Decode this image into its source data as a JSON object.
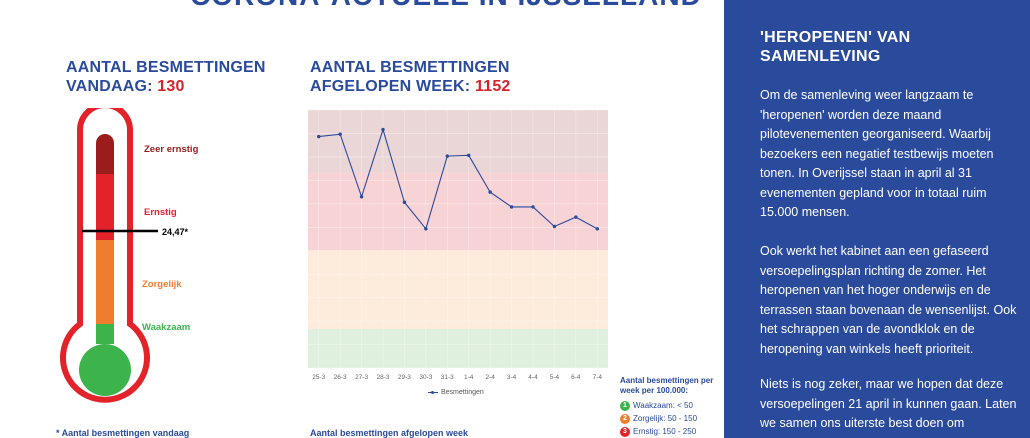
{
  "banner": {
    "title": "CORONA-ACTUELE IN IJSSELLAND"
  },
  "thermometer": {
    "heading_label": "AANTAL BESMETTINGEN",
    "heading_label2": "VANDAAG:",
    "heading_value": "130",
    "levels": [
      {
        "label": "Zeer ernstig",
        "color": "#9b1c1c"
      },
      {
        "label": "Ernstig",
        "color": "#e3232a"
      },
      {
        "label": "Zorgelijk",
        "color": "#f07c2e"
      },
      {
        "label": "Waakzaam",
        "color": "#3cb44b"
      }
    ],
    "marker_value": "24,47*",
    "footnote": "* Aantal besmettingen vandaag"
  },
  "weekly": {
    "heading_label": "AANTAL BESMETTINGEN",
    "heading_label2": "AFGELOPEN WEEK:",
    "heading_value": "1152",
    "footnote": "Aantal besmettingen afgelopen week"
  },
  "legend": {
    "title": "Aantal besmettingen per week per 100.000:",
    "items": [
      {
        "num": "1",
        "label": "Waakzaam: < 50",
        "color": "#3cb44b"
      },
      {
        "num": "2",
        "label": "Zorgelijk: 50 - 150",
        "color": "#f07c2e"
      },
      {
        "num": "3",
        "label": "Ernstig: 150 - 250",
        "color": "#e3232a"
      }
    ]
  },
  "chart_data": {
    "type": "line",
    "categories": [
      "25-3",
      "26-3",
      "27-3",
      "28-3",
      "29-3",
      "30-3",
      "31-3",
      "1-4",
      "2-4",
      "3-4",
      "4-4",
      "5-4",
      "6-4",
      "7-4"
    ],
    "series": [
      {
        "name": "Besmettingen",
        "values": [
          296,
          299,
          219,
          305,
          212,
          178,
          271,
          272,
          225,
          206,
          206,
          181,
          193,
          178
        ],
        "color": "#2a4a9c"
      }
    ],
    "ylim": [
      0,
      330
    ],
    "bands": [
      {
        "from": 0,
        "to": 50,
        "color": "#dff0df"
      },
      {
        "from": 50,
        "to": 150,
        "color": "#fdebdc"
      },
      {
        "from": 150,
        "to": 250,
        "color": "#f8d3d5"
      },
      {
        "from": 250,
        "to": 330,
        "color": "#ead6d6"
      }
    ],
    "grid": true,
    "legend_position": "bottom"
  },
  "sidebar": {
    "title": "'HEROPENEN' VAN SAMENLEVING",
    "paragraphs": [
      "Om de samenleving weer langzaam te 'heropenen' worden deze maand pilotevenementen georganiseerd. Waarbij bezoekers een negatief testbewijs moeten tonen. In Overijssel staan in april al 31 evenementen gepland voor in totaal ruim 15.000 mensen.",
      "Ook werkt het kabinet aan een gefaseerd versoepelingsplan richting de zomer. Het heropenen van het hoger onderwijs en de terrassen staan bovenaan de wensenlijst. Ook het schrappen van de avondklok en de heropening van winkels heeft prioriteit.",
      "Niets is nog zeker, maar we hopen dat deze versoepelingen 21 april in kunnen gaan. Laten we samen ons uiterste best doen om"
    ]
  }
}
